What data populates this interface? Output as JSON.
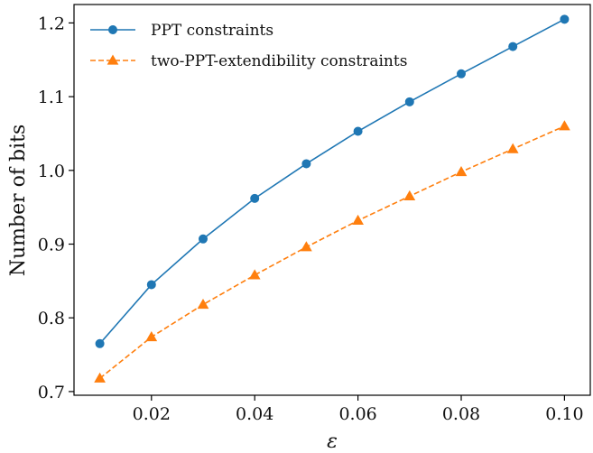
{
  "chart_data": {
    "type": "line",
    "title": "",
    "xlabel": "ε",
    "ylabel": "Number of bits",
    "xlim": [
      0.005,
      0.105
    ],
    "ylim": [
      0.695,
      1.225
    ],
    "xticks": [
      0.02,
      0.04,
      0.06,
      0.08,
      0.1
    ],
    "xtick_labels": [
      "0.02",
      "0.04",
      "0.06",
      "0.08",
      "0.10"
    ],
    "yticks": [
      0.7,
      0.8,
      0.9,
      1.0,
      1.1,
      1.2
    ],
    "ytick_labels": [
      "0.7",
      "0.8",
      "0.9",
      "1.0",
      "1.1",
      "1.2"
    ],
    "grid": false,
    "legend_position": "upper-left",
    "x": [
      0.01,
      0.02,
      0.03,
      0.04,
      0.05,
      0.06,
      0.07,
      0.08,
      0.09,
      0.1
    ],
    "series": [
      {
        "name": "PPT constraints",
        "color": "#1f77b4",
        "line_style": "solid",
        "marker": "circle",
        "values": [
          0.765,
          0.845,
          0.907,
          0.962,
          1.009,
          1.053,
          1.093,
          1.131,
          1.168,
          1.205
        ]
      },
      {
        "name": "two-PPT-extendibility constraints",
        "color": "#ff7f0e",
        "line_style": "dashed",
        "marker": "triangle",
        "values": [
          0.718,
          0.774,
          0.818,
          0.858,
          0.896,
          0.932,
          0.965,
          0.998,
          1.029,
          1.06
        ]
      }
    ]
  }
}
